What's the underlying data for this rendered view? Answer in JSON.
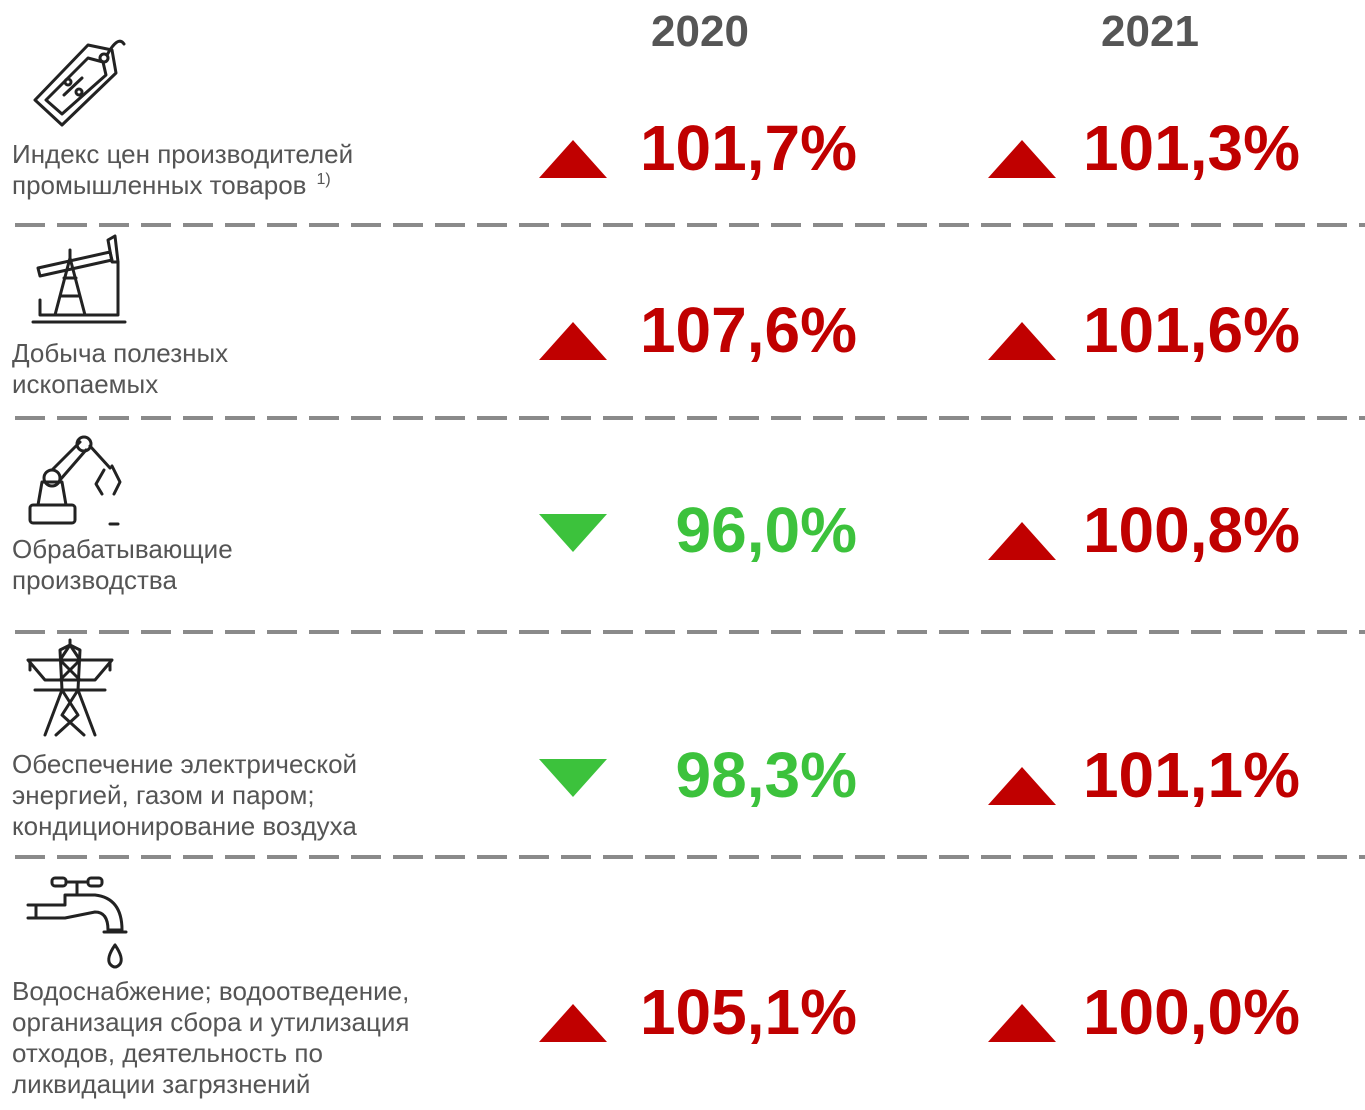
{
  "table": {
    "columns": [
      "2020",
      "2021"
    ],
    "rows": [
      {
        "label": [
          "Индекс цен производителей",
          "промышленных товаров"
        ],
        "footnote": "1)",
        "cells": [
          {
            "text": "101,7%",
            "trend": "up"
          },
          {
            "text": "101,3%",
            "trend": "up"
          }
        ]
      },
      {
        "label": [
          "Добыча полезных",
          "ископаемых"
        ],
        "cells": [
          {
            "text": "107,6%",
            "trend": "up"
          },
          {
            "text": "101,6%",
            "trend": "up"
          }
        ]
      },
      {
        "label": [
          "Обрабатывающие",
          "производства"
        ],
        "cells": [
          {
            "text": "96,0%",
            "trend": "down"
          },
          {
            "text": "100,8%",
            "trend": "up"
          }
        ]
      },
      {
        "label": [
          "Обеспечение электрической",
          "энергией, газом и паром;",
          "кондиционирование воздуха"
        ],
        "cells": [
          {
            "text": "98,3%",
            "trend": "down"
          },
          {
            "text": "101,1%",
            "trend": "up"
          }
        ]
      },
      {
        "label": [
          "Водоснабжение; водоотведение,",
          "организация сбора и утилизация",
          "отходов, деятельность по",
          "ликвидации загрязнений"
        ],
        "cells": [
          {
            "text": "105,1%",
            "trend": "up"
          },
          {
            "text": "100,0%",
            "trend": "up"
          }
        ]
      }
    ]
  }
}
